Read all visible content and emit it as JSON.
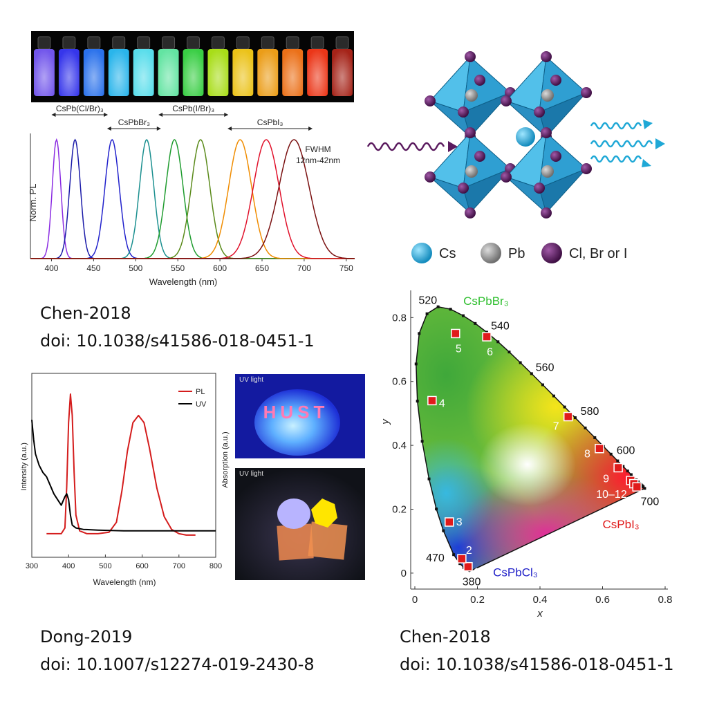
{
  "captions": {
    "topleft": {
      "author": "Chen-2018",
      "doi": "doi: 10.1038/s41586-018-0451-1"
    },
    "bottomleft": {
      "author": "Dong-2019",
      "doi": "doi: 10.1007/s12274-019-2430-8"
    },
    "bottomright": {
      "author": "Chen-2018",
      "doi": "doi: 10.1038/s41586-018-0451-1"
    }
  },
  "structure": {
    "legend": [
      {
        "label": "Cs",
        "color": "#1fa8d6"
      },
      {
        "label": "Pb",
        "color": "#8c8c8c"
      },
      {
        "label": "Cl, Br or I",
        "color": "#5a1a5e"
      }
    ]
  },
  "photos": {
    "hust_label": "UV light",
    "hust_text": "HUST",
    "hex_label": "UV light",
    "absorption_axis": "Absorption (a.u.)"
  },
  "chart_data": [
    {
      "type": "line",
      "id": "pl-spectra",
      "xlabel": "Wavelength (nm)",
      "ylabel": "Norm. PL",
      "xlim": [
        375,
        760
      ],
      "xticks": [
        400,
        450,
        500,
        550,
        600,
        650,
        700,
        750
      ],
      "annotation": "FWHM\n12nm-42nm",
      "ranges": [
        {
          "label": "CsPb(Cl/Br)₃",
          "from": 400,
          "to": 467
        },
        {
          "label": "CsPbBr₃",
          "from": 466,
          "to": 530
        },
        {
          "label": "CsPb(I/Br)₃",
          "from": 527,
          "to": 610
        },
        {
          "label": "CsPbI₃",
          "from": 609,
          "to": 710
        }
      ],
      "peaks": [
        {
          "center": 406,
          "fwhm": 12,
          "color": "#8a2be2"
        },
        {
          "center": 428,
          "fwhm": 15,
          "color": "#1a1aa8"
        },
        {
          "center": 472,
          "fwhm": 20,
          "color": "#2222cc"
        },
        {
          "center": 513,
          "fwhm": 20,
          "color": "#1a8f8f"
        },
        {
          "center": 546,
          "fwhm": 24,
          "color": "#1f9c2f"
        },
        {
          "center": 577,
          "fwhm": 26,
          "color": "#5a8a1a"
        },
        {
          "center": 624,
          "fwhm": 32,
          "color": "#f08c00"
        },
        {
          "center": 655,
          "fwhm": 36,
          "color": "#e0102a"
        },
        {
          "center": 688,
          "fwhm": 42,
          "color": "#7a1010"
        }
      ]
    },
    {
      "type": "line",
      "id": "pl-uv",
      "xlabel": "Wavelength (nm)",
      "ylabel": "Intensity (a.u.)",
      "xlim": [
        300,
        800
      ],
      "xticks": [
        300,
        400,
        500,
        600,
        700,
        800
      ],
      "series": [
        {
          "name": "PL",
          "color": "#d41c1c",
          "x": [
            340,
            380,
            390,
            395,
            400,
            405,
            410,
            415,
            420,
            430,
            450,
            480,
            510,
            530,
            545,
            560,
            575,
            590,
            605,
            620,
            640,
            660,
            680,
            700,
            720,
            745
          ],
          "y": [
            0.02,
            0.02,
            0.06,
            0.35,
            0.8,
            1.0,
            0.85,
            0.45,
            0.15,
            0.04,
            0.02,
            0.02,
            0.03,
            0.1,
            0.32,
            0.6,
            0.8,
            0.85,
            0.8,
            0.62,
            0.34,
            0.14,
            0.05,
            0.02,
            0.01,
            0.01
          ]
        },
        {
          "name": "UV",
          "color": "#000000",
          "x": [
            300,
            305,
            310,
            320,
            330,
            340,
            350,
            360,
            370,
            380,
            390,
            395,
            400,
            405,
            410,
            420,
            440,
            480,
            550,
            650,
            800
          ],
          "y": [
            0.82,
            0.68,
            0.58,
            0.5,
            0.45,
            0.42,
            0.36,
            0.3,
            0.26,
            0.22,
            0.28,
            0.3,
            0.26,
            0.15,
            0.08,
            0.06,
            0.05,
            0.045,
            0.04,
            0.04,
            0.04
          ]
        }
      ]
    },
    {
      "type": "scatter",
      "id": "cie",
      "xlabel": "x",
      "ylabel": "y",
      "xlim": [
        0,
        0.8
      ],
      "ylim": [
        -0.05,
        0.87
      ],
      "xticks": [
        0,
        0.2,
        0.4,
        0.6,
        0.8
      ],
      "yticks": [
        0,
        0.2,
        0.4,
        0.6,
        0.8
      ],
      "material_labels": [
        {
          "text": "CsPbBr₃",
          "color": "#2fbf2f"
        },
        {
          "text": "CsPbI₃",
          "color": "#e01b1b"
        },
        {
          "text": "CsPbCl₃",
          "color": "#2020c8"
        }
      ],
      "locus_labels": [
        {
          "text": "520",
          "x": 0.074,
          "y": 0.834
        },
        {
          "text": "540",
          "x": 0.23,
          "y": 0.754
        },
        {
          "text": "560",
          "x": 0.373,
          "y": 0.624
        },
        {
          "text": "580",
          "x": 0.512,
          "y": 0.487
        },
        {
          "text": "600",
          "x": 0.627,
          "y": 0.373
        },
        {
          "text": "700",
          "x": 0.735,
          "y": 0.265
        },
        {
          "text": "470",
          "x": 0.124,
          "y": 0.058
        },
        {
          "text": "380",
          "x": 0.174,
          "y": 0.005
        }
      ],
      "points": [
        {
          "label": "1",
          "x": 0.17,
          "y": 0.02
        },
        {
          "label": "2",
          "x": 0.15,
          "y": 0.045
        },
        {
          "label": "3",
          "x": 0.11,
          "y": 0.16
        },
        {
          "label": "4",
          "x": 0.055,
          "y": 0.54
        },
        {
          "label": "5",
          "x": 0.13,
          "y": 0.75
        },
        {
          "label": "6",
          "x": 0.23,
          "y": 0.74
        },
        {
          "label": "7",
          "x": 0.49,
          "y": 0.49
        },
        {
          "label": "8",
          "x": 0.59,
          "y": 0.39
        },
        {
          "label": "9",
          "x": 0.65,
          "y": 0.33
        },
        {
          "label": "10–12",
          "x": 0.69,
          "y": 0.29
        }
      ],
      "extra_points": [
        {
          "x": 0.7,
          "y": 0.28
        },
        {
          "x": 0.71,
          "y": 0.27
        }
      ]
    }
  ]
}
